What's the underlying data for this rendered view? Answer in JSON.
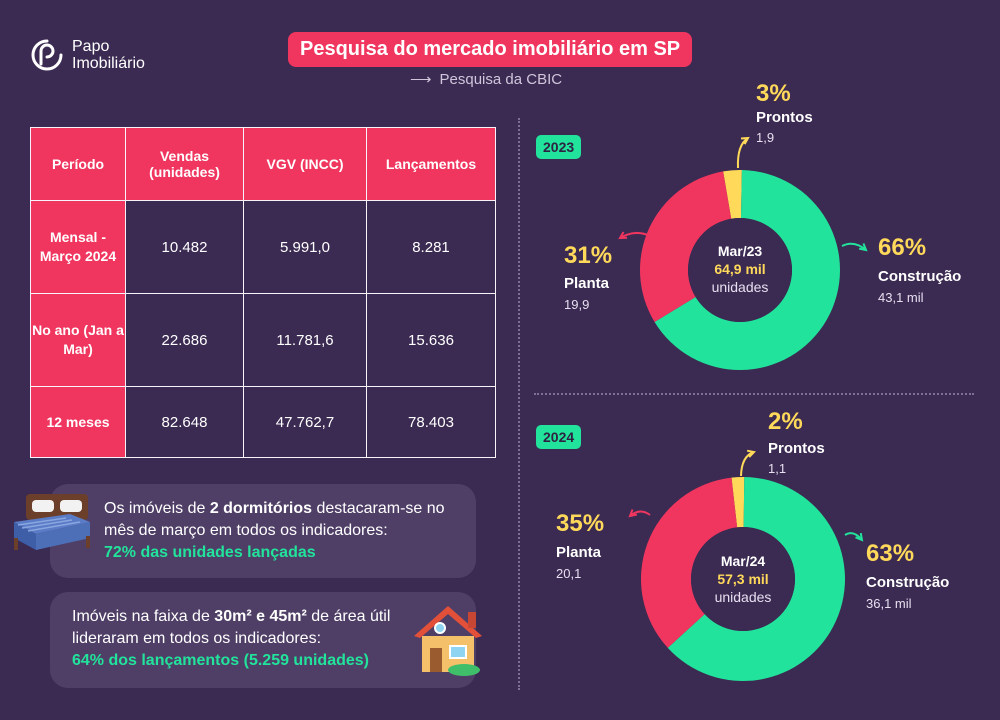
{
  "brand": {
    "line1": "Papo",
    "line2": "Imobiliário"
  },
  "header": {
    "title": "Pesquisa do mercado imobiliário em SP",
    "subtitle": "Pesquisa da CBIC"
  },
  "table": {
    "headers": [
      "Período",
      "Vendas (unidades)",
      "VGV (INCC)",
      "Lançamentos"
    ],
    "rows": [
      {
        "period": "Mensal - Março 2024",
        "vendas": "10.482",
        "vgv": "5.991,0",
        "lancamentos": "8.281"
      },
      {
        "period": "No ano (Jan a Mar)",
        "vendas": "22.686",
        "vgv": "11.781,6",
        "lancamentos": "15.636"
      },
      {
        "period": "12 meses",
        "vendas": "82.648",
        "vgv": "47.762,7",
        "lancamentos": "78.403"
      }
    ]
  },
  "callouts": {
    "first": {
      "pre": "Os imóveis de ",
      "bold": "2 dormitórios",
      "post": " destacaram-se no mês de março em todos os indicadores:",
      "highlight": "72% das unidades lançadas"
    },
    "second": {
      "pre": "Imóveis na faixa de ",
      "bold": "30m² e 45m²",
      "post": " de área útil lideraram em todos os indicadores:",
      "highlight": "64% dos lançamentos (5.259 unidades)"
    }
  },
  "colors": {
    "background": "#3b2a52",
    "accent_red": "#f0365f",
    "accent_green": "#22e39b",
    "accent_yellow": "#ffd95a"
  },
  "chart_data": [
    {
      "type": "pie",
      "badge": "2023",
      "center_label": "Mar/23",
      "center_total": "64,9 mil",
      "center_unit": "unidades",
      "slices": [
        {
          "name": "Prontos",
          "percent": 3,
          "pct_label": "3%",
          "value": "1,9",
          "color": "#ffd95a"
        },
        {
          "name": "Construção",
          "percent": 66,
          "pct_label": "66%",
          "value": "43,1 mil",
          "color": "#22e39b"
        },
        {
          "name": "Planta",
          "percent": 31,
          "pct_label": "31%",
          "value": "19,9",
          "color": "#f0365f"
        }
      ]
    },
    {
      "type": "pie",
      "badge": "2024",
      "center_label": "Mar/24",
      "center_total": "57,3 mil",
      "center_unit": "unidades",
      "slices": [
        {
          "name": "Prontos",
          "percent": 2,
          "pct_label": "2%",
          "value": "1,1",
          "color": "#ffd95a"
        },
        {
          "name": "Construção",
          "percent": 63,
          "pct_label": "63%",
          "value": "36,1 mil",
          "color": "#22e39b"
        },
        {
          "name": "Planta",
          "percent": 35,
          "pct_label": "35%",
          "value": "20,1",
          "color": "#f0365f"
        }
      ]
    }
  ]
}
